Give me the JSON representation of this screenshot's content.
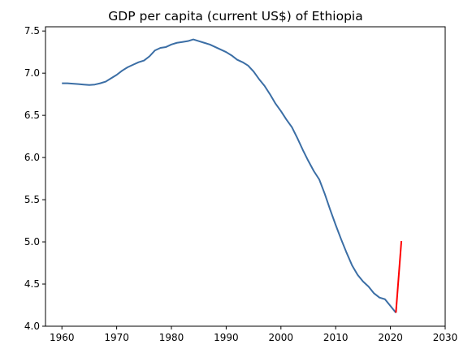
{
  "chart_data": {
    "type": "line",
    "title": "GDP per capita (current US$) of Ethiopia",
    "xlabel": "",
    "ylabel": "",
    "xlim": [
      1957,
      2030
    ],
    "ylim": [
      4.0,
      7.55
    ],
    "xticks": [
      1960,
      1970,
      1980,
      1990,
      2000,
      2010,
      2020,
      2030
    ],
    "yticks": [
      4.0,
      4.5,
      5.0,
      5.5,
      6.0,
      6.5,
      7.0,
      7.5
    ],
    "xtick_labels": [
      "1960",
      "1970",
      "1980",
      "1990",
      "2000",
      "2010",
      "2020",
      "2030"
    ],
    "ytick_labels": [
      "4.0",
      "4.5",
      "5.0",
      "5.5",
      "6.0",
      "6.5",
      "7.0",
      "7.5"
    ],
    "grid": false,
    "series": [
      {
        "color": "#3b6ea5",
        "x": [
          1960,
          1961,
          1962,
          1963,
          1964,
          1965,
          1966,
          1967,
          1968,
          1969,
          1970,
          1971,
          1972,
          1973,
          1974,
          1975,
          1976,
          1977,
          1978,
          1979,
          1980,
          1981,
          1982,
          1983,
          1984,
          1985,
          1986,
          1987,
          1988,
          1989,
          1990,
          1991,
          1992,
          1993,
          1994,
          1995,
          1996,
          1997,
          1998,
          1999,
          2000,
          2001,
          2002,
          2003,
          2004,
          2005,
          2006,
          2007,
          2008,
          2009,
          2010,
          2011,
          2012,
          2013,
          2014,
          2015,
          2016,
          2017,
          2018,
          2019,
          2020,
          2021
        ],
        "y": [
          6.88,
          6.88,
          6.875,
          6.87,
          6.865,
          6.86,
          6.865,
          6.88,
          6.9,
          6.94,
          6.98,
          7.03,
          7.07,
          7.1,
          7.13,
          7.15,
          7.2,
          7.27,
          7.3,
          7.31,
          7.34,
          7.36,
          7.37,
          7.38,
          7.4,
          7.38,
          7.36,
          7.34,
          7.31,
          7.28,
          7.25,
          7.21,
          7.16,
          7.13,
          7.09,
          7.02,
          6.93,
          6.85,
          6.75,
          6.64,
          6.55,
          6.45,
          6.36,
          6.23,
          6.09,
          5.96,
          5.84,
          5.74,
          5.57,
          5.38,
          5.2,
          5.03,
          4.87,
          4.72,
          4.61,
          4.53,
          4.47,
          4.39,
          4.34,
          4.32,
          4.24,
          4.16
        ]
      },
      {
        "color": "#ff0000",
        "x": [
          2021,
          2022
        ],
        "y": [
          4.16,
          5.01
        ]
      }
    ]
  }
}
